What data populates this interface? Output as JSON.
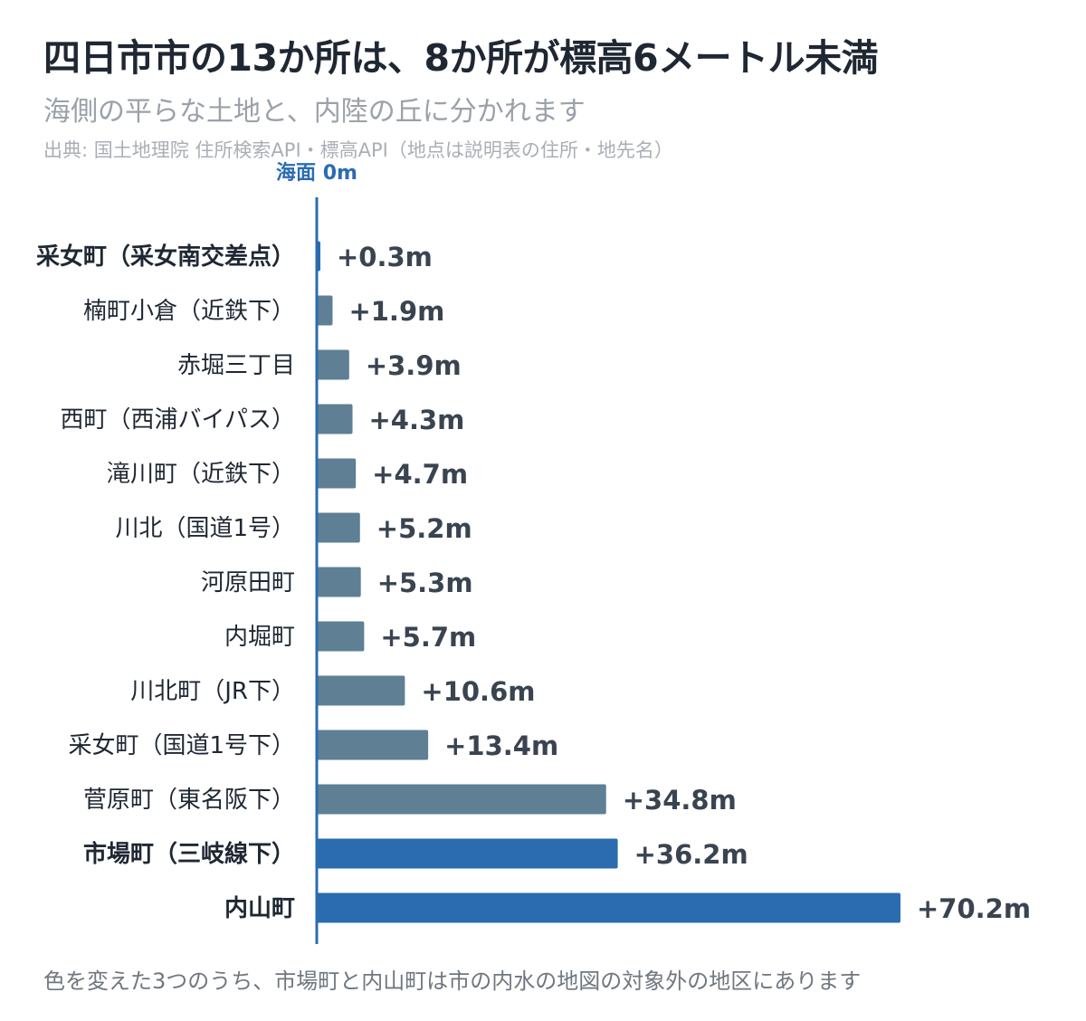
{
  "title": "四日市市の13か所は、8か所が標高6メートル未満",
  "subtitle": "海側の平らな土地と、内陸の丘に分かれます",
  "source": "出典: 国土地理院 住所検索API・標高API（地点は説明表の住所・地先名）",
  "footnote": "色を変えた3つのうち、市場町と内山町は市の内水の地図の対象外の地区にあります",
  "colors": {
    "highlight": "#2b6cb0",
    "default": "#5e7f94",
    "axis": "#2b6cb0",
    "text": "#1f2733"
  },
  "chart_data": {
    "type": "bar",
    "orientation": "horizontal",
    "zero_line_label": "海面 0m",
    "categories": [
      "采女町（采女南交差点）",
      "楠町小倉（近鉄下）",
      "赤堀三丁目",
      "西町（西浦バイパス）",
      "滝川町（近鉄下）",
      "川北（国道1号）",
      "河原田町",
      "内堀町",
      "川北町（JR下）",
      "采女町（国道1号下）",
      "菅原町（東名阪下）",
      "市場町（三岐線下）",
      "内山町"
    ],
    "values": [
      0.3,
      1.9,
      3.9,
      4.3,
      4.7,
      5.2,
      5.3,
      5.7,
      10.6,
      13.4,
      34.8,
      36.2,
      70.2
    ],
    "value_labels": [
      "+0.3m",
      "+1.9m",
      "+3.9m",
      "+4.3m",
      "+4.7m",
      "+5.2m",
      "+5.3m",
      "+5.7m",
      "+10.6m",
      "+13.4m",
      "+34.8m",
      "+36.2m",
      "+70.2m"
    ],
    "highlighted": [
      true,
      false,
      false,
      false,
      false,
      false,
      false,
      false,
      false,
      false,
      false,
      true,
      true
    ],
    "xlim": [
      0,
      70.2
    ],
    "grid": false
  }
}
